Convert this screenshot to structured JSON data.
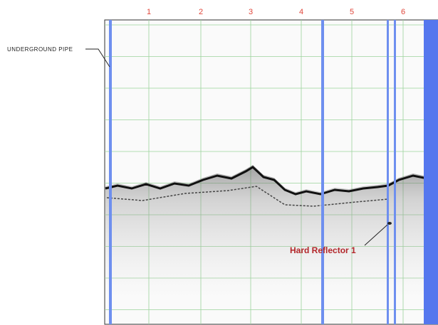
{
  "labels": {
    "pipe": "UNDERGROUND PIPE",
    "reflector": "Hard Reflector 1"
  },
  "columns": [
    "1",
    "2",
    "3",
    "4",
    "5",
    "6"
  ]
}
